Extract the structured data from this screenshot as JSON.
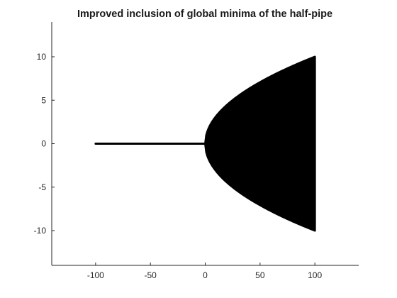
{
  "chart_data": {
    "type": "scatter",
    "title": "Improved inclusion of global minima of the half-pipe",
    "xlabel": "",
    "ylabel": "",
    "xlim": [
      -140,
      140
    ],
    "ylim": [
      -14,
      14
    ],
    "xticks": [
      -100,
      -50,
      0,
      50,
      100
    ],
    "yticks": [
      -10,
      -5,
      0,
      5,
      10
    ],
    "xtick_labels": [
      "-100",
      "-50",
      "0",
      "50",
      "100"
    ],
    "ytick_labels": [
      "-10",
      "-5",
      "0",
      "5",
      "10"
    ],
    "grid": false,
    "legend": "none",
    "series": [
      {
        "kind": "segment",
        "points": [
          [
            -100,
            0
          ],
          [
            0,
            0
          ]
        ]
      },
      {
        "kind": "region",
        "x_range": [
          0,
          100
        ],
        "upper": "sqrt(x)",
        "lower": "-sqrt(x)"
      }
    ],
    "mark_color": "#000000"
  }
}
